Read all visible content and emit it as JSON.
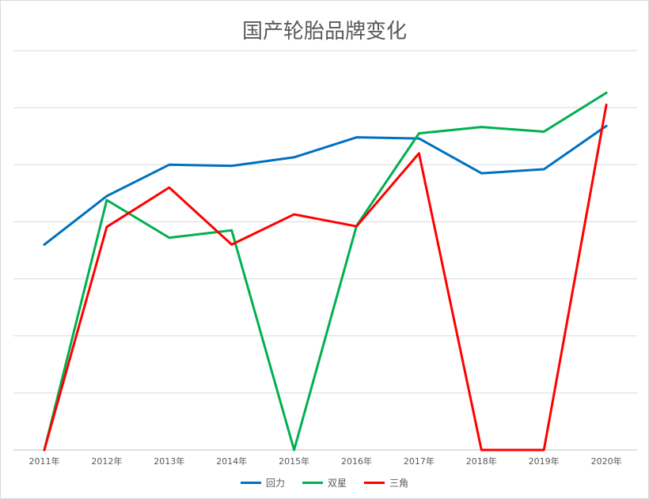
{
  "chart_data": {
    "type": "line",
    "title": "国产轮胎品牌变化",
    "categories": [
      "2011年",
      "2012年",
      "2013年",
      "2014年",
      "2015年",
      "2016年",
      "2017年",
      "2018年",
      "2019年",
      "2020年"
    ],
    "ylim": [
      0,
      7
    ],
    "grid": true,
    "legend_position": "bottom",
    "series": [
      {
        "name": "回力",
        "color": "#0070C0",
        "values": [
          3.6,
          4.45,
          5.0,
          4.98,
          5.13,
          5.48,
          5.46,
          4.85,
          4.92,
          5.68
        ]
      },
      {
        "name": "双星",
        "color": "#00B050",
        "values": [
          0,
          4.38,
          3.72,
          3.85,
          0,
          3.93,
          5.55,
          5.66,
          5.58,
          6.26
        ]
      },
      {
        "name": "三角",
        "color": "#FF0000",
        "values": [
          0,
          3.91,
          4.6,
          3.6,
          4.13,
          3.92,
          5.2,
          0,
          0,
          6.05
        ]
      }
    ]
  }
}
